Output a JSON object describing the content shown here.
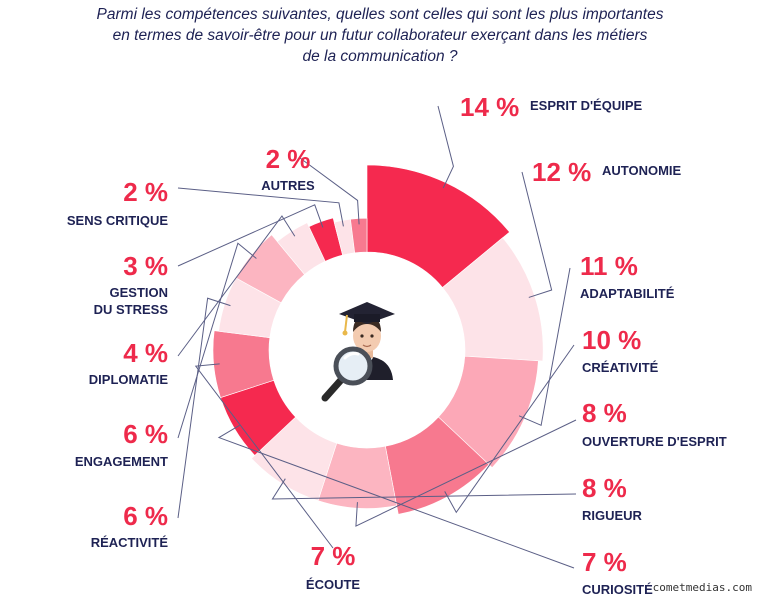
{
  "title": {
    "line1": "Parmi les compétences suivantes, quelles sont celles qui sont les plus importantes",
    "line2": "en termes de savoir-être pour un futur collaborateur exerçant dans les métiers",
    "line3": "de la communication ?"
  },
  "watermark": "cometmedias.com",
  "center_icon": "graduate-with-magnifier-icon",
  "chart_data": {
    "type": "pie",
    "style": "radial-donut",
    "categories": [
      "ESPRIT D'ÉQUIPE",
      "AUTONOMIE",
      "ADAPTABILITÉ",
      "CRÉATIVITÉ",
      "OUVERTURE D'ESPRIT",
      "RIGUEUR",
      "CURIOSITÉ",
      "ÉCOUTE",
      "RÉACTIVITÉ",
      "ENGAGEMENT",
      "DIPLOMATIE",
      "GESTION DU STRESS",
      "SENS CRITIQUE",
      "AUTRES"
    ],
    "values": [
      14,
      12,
      11,
      10,
      8,
      8,
      7,
      7,
      6,
      6,
      4,
      3,
      2,
      2
    ],
    "unit": "%",
    "value_labels": [
      "14 %",
      "12 %",
      "11 %",
      "10 %",
      "8 %",
      "8 %",
      "7 %",
      "7 %",
      "6 %",
      "6 %",
      "4 %",
      "3 %",
      "2 %",
      "2 %"
    ],
    "label_lines": [
      [
        "ESPRIT D'ÉQUIPE"
      ],
      [
        "AUTONOMIE"
      ],
      [
        "ADAPTABILITÉ"
      ],
      [
        "CRÉATIVITÉ"
      ],
      [
        "OUVERTURE D'ESPRIT"
      ],
      [
        "RIGUEUR"
      ],
      [
        "CURIOSITÉ"
      ],
      [
        "ÉCOUTE"
      ],
      [
        "RÉACTIVITÉ"
      ],
      [
        "ENGAGEMENT"
      ],
      [
        "DIPLOMATIE"
      ],
      [
        "GESTION",
        "DU STRESS"
      ],
      [
        "SENS CRITIQUE"
      ],
      [
        "AUTRES"
      ]
    ],
    "colors": [
      "#f5294f",
      "#fde3e8",
      "#fca8b7",
      "#f7798f",
      "#fcb5c1",
      "#fde3e8",
      "#f5294f",
      "#f7798f",
      "#fde3e8",
      "#fcb5c1",
      "#fde3e8",
      "#f5294f",
      "#fde3e8",
      "#f7798f"
    ]
  }
}
